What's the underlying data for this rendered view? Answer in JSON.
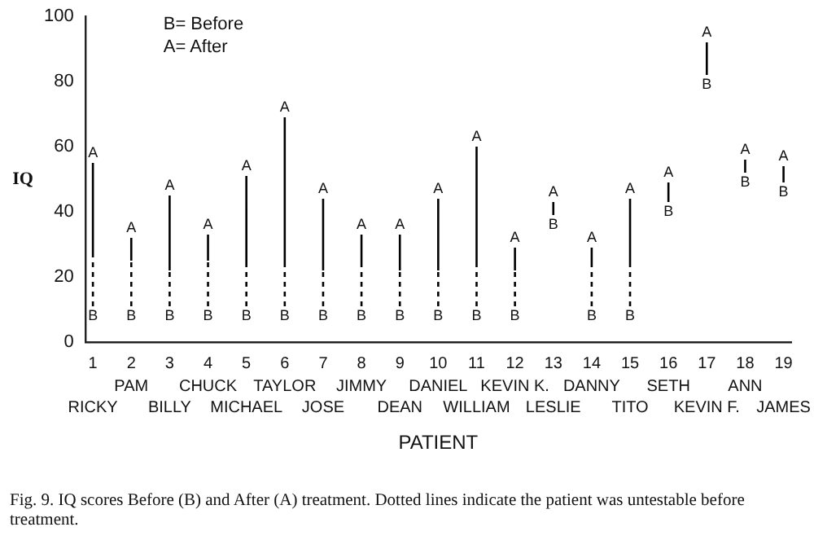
{
  "chart_data": {
    "type": "line",
    "ylabel": "IQ",
    "xlabel": "PATIENT",
    "xlim": [
      0.8,
      19.2
    ],
    "xticks": [
      1,
      2,
      3,
      4,
      5,
      6,
      7,
      8,
      9,
      10,
      11,
      12,
      13,
      14,
      15,
      16,
      17,
      18,
      19
    ],
    "ylim": [
      0,
      100
    ],
    "yticks": [
      0,
      20,
      40,
      60,
      80,
      100
    ],
    "grid": false,
    "marker": "none",
    "series": [
      {
        "line_style": "dashed",
        "color": "#000000",
        "x": [
          1,
          1
        ],
        "values": [
          11,
          26
        ]
      },
      {
        "line_style": "solid",
        "color": "#000000",
        "x": [
          1,
          1
        ],
        "values": [
          26,
          55
        ]
      },
      {
        "line_style": "dashed",
        "color": "#000000",
        "x": [
          2,
          2
        ],
        "values": [
          11,
          25
        ]
      },
      {
        "line_style": "solid",
        "color": "#000000",
        "x": [
          2,
          2
        ],
        "values": [
          25,
          32
        ]
      },
      {
        "line_style": "dashed",
        "color": "#000000",
        "x": [
          3,
          3
        ],
        "values": [
          11,
          22
        ]
      },
      {
        "line_style": "solid",
        "color": "#000000",
        "x": [
          3,
          3
        ],
        "values": [
          22,
          45
        ]
      },
      {
        "line_style": "dashed",
        "color": "#000000",
        "x": [
          4,
          4
        ],
        "values": [
          11,
          25
        ]
      },
      {
        "line_style": "solid",
        "color": "#000000",
        "x": [
          4,
          4
        ],
        "values": [
          25,
          33
        ]
      },
      {
        "line_style": "dashed",
        "color": "#000000",
        "x": [
          5,
          5
        ],
        "values": [
          11,
          24
        ]
      },
      {
        "line_style": "solid",
        "color": "#000000",
        "x": [
          5,
          5
        ],
        "values": [
          24,
          51
        ]
      },
      {
        "line_style": "dashed",
        "color": "#000000",
        "x": [
          6,
          6
        ],
        "values": [
          11,
          24
        ]
      },
      {
        "line_style": "solid",
        "color": "#000000",
        "x": [
          6,
          6
        ],
        "values": [
          24,
          69
        ]
      },
      {
        "line_style": "dashed",
        "color": "#000000",
        "x": [
          7,
          7
        ],
        "values": [
          11,
          22
        ]
      },
      {
        "line_style": "solid",
        "color": "#000000",
        "x": [
          7,
          7
        ],
        "values": [
          22,
          44
        ]
      },
      {
        "line_style": "dashed",
        "color": "#000000",
        "x": [
          8,
          8
        ],
        "values": [
          11,
          23
        ]
      },
      {
        "line_style": "solid",
        "color": "#000000",
        "x": [
          8,
          8
        ],
        "values": [
          23,
          33
        ]
      },
      {
        "line_style": "dashed",
        "color": "#000000",
        "x": [
          9,
          9
        ],
        "values": [
          11,
          22
        ]
      },
      {
        "line_style": "solid",
        "color": "#000000",
        "x": [
          9,
          9
        ],
        "values": [
          22,
          33
        ]
      },
      {
        "line_style": "dashed",
        "color": "#000000",
        "x": [
          10,
          10
        ],
        "values": [
          11,
          22
        ]
      },
      {
        "line_style": "solid",
        "color": "#000000",
        "x": [
          10,
          10
        ],
        "values": [
          22,
          44
        ]
      },
      {
        "line_style": "dashed",
        "color": "#000000",
        "x": [
          11,
          11
        ],
        "values": [
          11,
          24
        ]
      },
      {
        "line_style": "solid",
        "color": "#000000",
        "x": [
          11,
          11
        ],
        "values": [
          24,
          60
        ]
      },
      {
        "line_style": "dashed",
        "color": "#000000",
        "x": [
          12,
          12
        ],
        "values": [
          11,
          22
        ]
      },
      {
        "line_style": "solid",
        "color": "#000000",
        "x": [
          12,
          12
        ],
        "values": [
          22,
          29
        ]
      },
      {
        "line_style": "solid",
        "color": "#000000",
        "x": [
          13,
          13
        ],
        "values": [
          39,
          43
        ]
      },
      {
        "line_style": "dashed",
        "color": "#000000",
        "x": [
          14,
          14
        ],
        "values": [
          11,
          24
        ]
      },
      {
        "line_style": "solid",
        "color": "#000000",
        "x": [
          14,
          14
        ],
        "values": [
          24,
          29
        ]
      },
      {
        "line_style": "dashed",
        "color": "#000000",
        "x": [
          15,
          15
        ],
        "values": [
          11,
          24
        ]
      },
      {
        "line_style": "solid",
        "color": "#000000",
        "x": [
          15,
          15
        ],
        "values": [
          24,
          44
        ]
      },
      {
        "line_style": "solid",
        "color": "#000000",
        "x": [
          16,
          16
        ],
        "values": [
          43,
          49
        ]
      },
      {
        "line_style": "solid",
        "color": "#000000",
        "x": [
          17,
          17
        ],
        "values": [
          82,
          92
        ]
      },
      {
        "line_style": "solid",
        "color": "#000000",
        "x": [
          18,
          18
        ],
        "values": [
          52,
          56
        ]
      },
      {
        "line_style": "solid",
        "color": "#000000",
        "x": [
          19,
          19
        ],
        "values": [
          49,
          54
        ]
      }
    ],
    "annotations": [
      "B= Before",
      "A= After",
      {
        "text": "B",
        "x": 1,
        "y": 11
      },
      {
        "text": "A",
        "x": 1,
        "y": 55
      },
      {
        "text": "B",
        "x": 2,
        "y": 11
      },
      {
        "text": "A",
        "x": 2,
        "y": 32
      },
      {
        "text": "B",
        "x": 3,
        "y": 11
      },
      {
        "text": "A",
        "x": 3,
        "y": 45
      },
      {
        "text": "B",
        "x": 4,
        "y": 11
      },
      {
        "text": "A",
        "x": 4,
        "y": 33
      },
      {
        "text": "B",
        "x": 5,
        "y": 11
      },
      {
        "text": "A",
        "x": 5,
        "y": 51
      },
      {
        "text": "B",
        "x": 6,
        "y": 11
      },
      {
        "text": "A",
        "x": 6,
        "y": 69
      },
      {
        "text": "B",
        "x": 7,
        "y": 11
      },
      {
        "text": "A",
        "x": 7,
        "y": 44
      },
      {
        "text": "B",
        "x": 8,
        "y": 11
      },
      {
        "text": "A",
        "x": 8,
        "y": 33
      },
      {
        "text": "B",
        "x": 9,
        "y": 11
      },
      {
        "text": "A",
        "x": 9,
        "y": 33
      },
      {
        "text": "B",
        "x": 10,
        "y": 11
      },
      {
        "text": "A",
        "x": 10,
        "y": 44
      },
      {
        "text": "B",
        "x": 11,
        "y": 11
      },
      {
        "text": "A",
        "x": 11,
        "y": 60
      },
      {
        "text": "B",
        "x": 12,
        "y": 11
      },
      {
        "text": "A",
        "x": 12,
        "y": 29
      },
      {
        "text": "B",
        "x": 13,
        "y": 39
      },
      {
        "text": "A",
        "x": 13,
        "y": 43
      },
      {
        "text": "B",
        "x": 14,
        "y": 11
      },
      {
        "text": "A",
        "x": 14,
        "y": 29
      },
      {
        "text": "B",
        "x": 15,
        "y": 11
      },
      {
        "text": "A",
        "x": 15,
        "y": 44
      },
      {
        "text": "B",
        "x": 16,
        "y": 43
      },
      {
        "text": "A",
        "x": 16,
        "y": 49
      },
      {
        "text": "B",
        "x": 17,
        "y": 82
      },
      {
        "text": "A",
        "x": 17,
        "y": 92
      },
      {
        "text": "B",
        "x": 18,
        "y": 52
      },
      {
        "text": "A",
        "x": 18,
        "y": 56
      },
      {
        "text": "B",
        "x": 19,
        "y": 49
      },
      {
        "text": "A",
        "x": 19,
        "y": 54
      },
      "RICKY",
      "PAM",
      "BILLY",
      "CHUCK",
      "MICHAEL",
      "TAYLOR",
      "JOSE",
      "JIMMY",
      "DEAN",
      "DANIEL",
      "WILLIAM",
      "KEVIN K.",
      "LESLIE",
      "DANNY",
      "TITO",
      "SETH",
      "KEVIN F.",
      "ANN",
      "JAMES",
      "Fig. 9. IQ scores Before (B) and After (A) treatment. Dotted lines indicate the patient was untestable before treatment."
    ]
  }
}
